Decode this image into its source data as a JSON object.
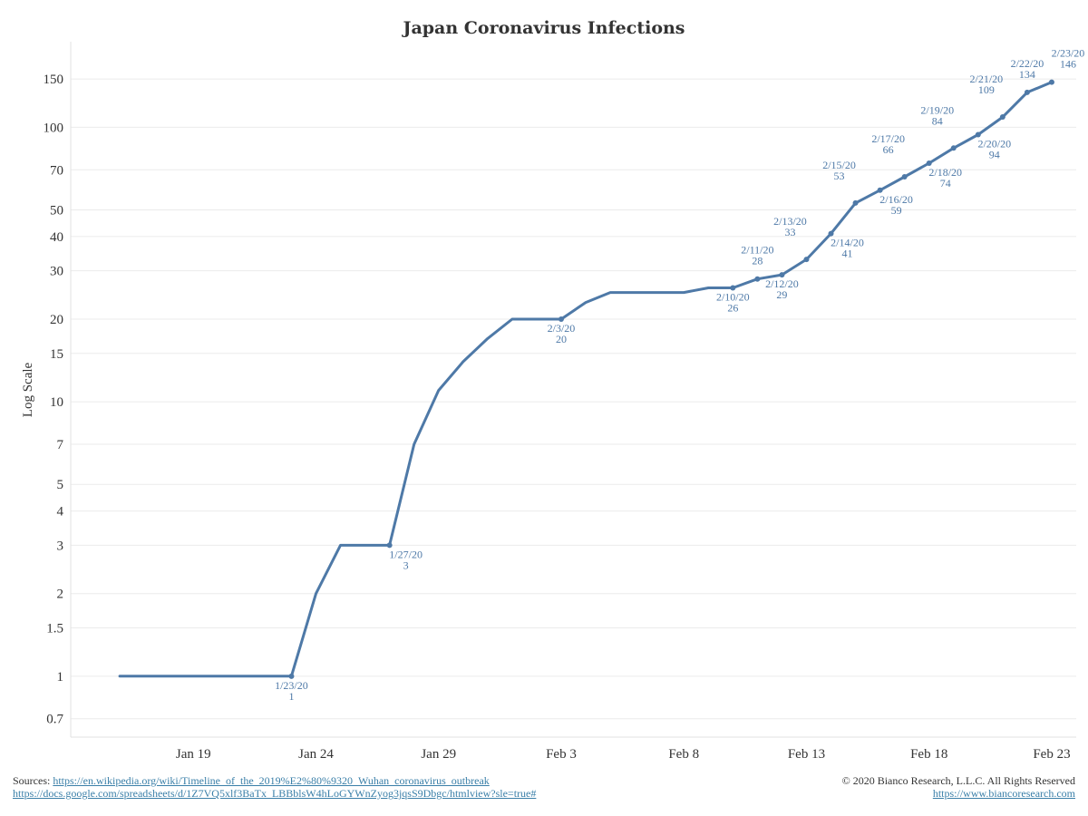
{
  "chart_data": {
    "type": "line",
    "title": "Japan Coronavirus Infections",
    "ylabel": "Log Scale",
    "xlabel": "",
    "y_scale": "log",
    "ylim": [
      0.6,
      190
    ],
    "xlim": [
      "2020-01-14",
      "2020-02-24"
    ],
    "grid": true,
    "color": "#4e79a7",
    "y_ticks": [
      0.7,
      1,
      1.5,
      2,
      3,
      4,
      5,
      7,
      10,
      15,
      20,
      30,
      40,
      50,
      70,
      100,
      150
    ],
    "y_tick_labels": [
      "0.7",
      "1",
      "1.5",
      "2",
      "3",
      "4",
      "5",
      "7",
      "10",
      "15",
      "20",
      "30",
      "40",
      "50",
      "70",
      "100",
      "150"
    ],
    "x_ticks": [
      "2020-01-19",
      "2020-01-24",
      "2020-01-29",
      "2020-02-03",
      "2020-02-08",
      "2020-02-13",
      "2020-02-18",
      "2020-02-23"
    ],
    "x_tick_labels": [
      "Jan 19",
      "Jan 24",
      "Jan 29",
      "Feb 3",
      "Feb 8",
      "Feb 13",
      "Feb 18",
      "Feb 23"
    ],
    "series": [
      {
        "x": [
          "2020-01-16",
          "2020-01-17",
          "2020-01-18",
          "2020-01-19",
          "2020-01-20",
          "2020-01-21",
          "2020-01-22",
          "2020-01-23",
          "2020-01-24",
          "2020-01-25",
          "2020-01-26",
          "2020-01-27",
          "2020-01-28",
          "2020-01-29",
          "2020-01-30",
          "2020-01-31",
          "2020-02-01",
          "2020-02-02",
          "2020-02-03",
          "2020-02-04",
          "2020-02-05",
          "2020-02-06",
          "2020-02-07",
          "2020-02-08",
          "2020-02-09",
          "2020-02-10",
          "2020-02-11",
          "2020-02-12",
          "2020-02-13",
          "2020-02-14",
          "2020-02-15",
          "2020-02-16",
          "2020-02-17",
          "2020-02-18",
          "2020-02-19",
          "2020-02-20",
          "2020-02-21",
          "2020-02-22",
          "2020-02-23"
        ],
        "y": [
          1,
          1,
          1,
          1,
          1,
          1,
          1,
          1,
          2,
          3,
          3,
          3,
          7,
          11,
          14,
          17,
          20,
          20,
          20,
          23,
          25,
          25,
          25,
          25,
          26,
          26,
          28,
          29,
          33,
          41,
          53,
          59,
          66,
          74,
          84,
          94,
          109,
          134,
          146
        ]
      }
    ],
    "annotations": [
      {
        "date": "1/23/20",
        "value": "1",
        "x": "2020-01-23",
        "y": 1,
        "pos": "below"
      },
      {
        "date": "1/27/20",
        "value": "3",
        "x": "2020-01-27",
        "y": 3,
        "pos": "below-right"
      },
      {
        "date": "2/3/20",
        "value": "20",
        "x": "2020-02-03",
        "y": 20,
        "pos": "below"
      },
      {
        "date": "2/10/20",
        "value": "26",
        "x": "2020-02-10",
        "y": 26,
        "pos": "below"
      },
      {
        "date": "2/11/20",
        "value": "28",
        "x": "2020-02-11",
        "y": 28,
        "pos": "above"
      },
      {
        "date": "2/12/20",
        "value": "29",
        "x": "2020-02-12",
        "y": 29,
        "pos": "below"
      },
      {
        "date": "2/13/20",
        "value": "33",
        "x": "2020-02-13",
        "y": 33,
        "pos": "above-left"
      },
      {
        "date": "2/14/20",
        "value": "41",
        "x": "2020-02-14",
        "y": 41,
        "pos": "below-right"
      },
      {
        "date": "2/15/20",
        "value": "53",
        "x": "2020-02-15",
        "y": 53,
        "pos": "above-left"
      },
      {
        "date": "2/16/20",
        "value": "59",
        "x": "2020-02-16",
        "y": 59,
        "pos": "below-right"
      },
      {
        "date": "2/17/20",
        "value": "66",
        "x": "2020-02-17",
        "y": 66,
        "pos": "above-left"
      },
      {
        "date": "2/18/20",
        "value": "74",
        "x": "2020-02-18",
        "y": 74,
        "pos": "below-right"
      },
      {
        "date": "2/19/20",
        "value": "84",
        "x": "2020-02-19",
        "y": 84,
        "pos": "above-left"
      },
      {
        "date": "2/20/20",
        "value": "94",
        "x": "2020-02-20",
        "y": 94,
        "pos": "below-right"
      },
      {
        "date": "2/21/20",
        "value": "109",
        "x": "2020-02-21",
        "y": 109,
        "pos": "above-left"
      },
      {
        "date": "2/22/20",
        "value": "134",
        "x": "2020-02-22",
        "y": 134,
        "pos": "above"
      },
      {
        "date": "2/23/20",
        "value": "146",
        "x": "2020-02-23",
        "y": 146,
        "pos": "above-right"
      }
    ]
  },
  "footer": {
    "sources_label": "Sources:",
    "source_url_1": "https://en.wikipedia.org/wiki/Timeline_of_the_2019%E2%80%9320_Wuhan_coronavirus_outbreak",
    "source_url_2": "https://docs.google.com/spreadsheets/d/1Z7VQ5xlf3BaTx_LBBblsW4hLoGYWnZyog3jqsS9Dbgc/htmlview?sle=true#",
    "copyright": "© 2020 Bianco Research, L.L.C. All Rights Reserved",
    "website": "https://www.biancoresearch.com"
  }
}
